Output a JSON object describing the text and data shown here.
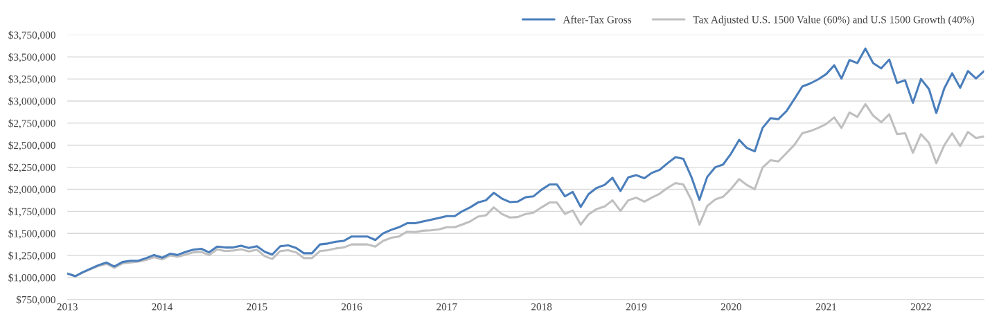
{
  "chart_data": {
    "type": "line",
    "x": [
      "2013-01",
      "2013-02",
      "2013-03",
      "2013-04",
      "2013-05",
      "2013-06",
      "2013-07",
      "2013-08",
      "2013-09",
      "2013-10",
      "2013-11",
      "2013-12",
      "2014-01",
      "2014-02",
      "2014-03",
      "2014-04",
      "2014-05",
      "2014-06",
      "2014-07",
      "2014-08",
      "2014-09",
      "2014-10",
      "2014-11",
      "2014-12",
      "2015-01",
      "2015-02",
      "2015-03",
      "2015-04",
      "2015-05",
      "2015-06",
      "2015-07",
      "2015-08",
      "2015-09",
      "2015-10",
      "2015-11",
      "2015-12",
      "2016-01",
      "2016-02",
      "2016-03",
      "2016-04",
      "2016-05",
      "2016-06",
      "2016-07",
      "2016-08",
      "2016-09",
      "2016-10",
      "2016-11",
      "2016-12",
      "2017-01",
      "2017-02",
      "2017-03",
      "2017-04",
      "2017-05",
      "2017-06",
      "2017-07",
      "2017-08",
      "2017-09",
      "2017-10",
      "2017-11",
      "2017-12",
      "2018-01",
      "2018-02",
      "2018-03",
      "2018-04",
      "2018-05",
      "2018-06",
      "2018-07",
      "2018-08",
      "2018-09",
      "2018-10",
      "2018-11",
      "2018-12",
      "2019-01",
      "2019-02",
      "2019-03",
      "2019-04",
      "2019-05",
      "2019-06",
      "2019-07",
      "2019-08",
      "2019-09",
      "2019-10",
      "2019-11",
      "2019-12",
      "2020-01",
      "2020-02",
      "2020-03",
      "2020-04",
      "2020-05",
      "2020-06",
      "2020-07",
      "2020-08",
      "2020-09",
      "2020-10",
      "2020-11",
      "2020-12",
      "2021-01",
      "2021-02",
      "2021-03",
      "2021-04",
      "2021-05",
      "2021-06",
      "2021-07",
      "2021-08",
      "2021-09",
      "2021-10",
      "2021-11",
      "2021-12",
      "2022-01",
      "2022-02",
      "2022-03",
      "2022-04",
      "2022-05",
      "2022-06",
      "2022-07",
      "2022-08",
      "2022-09"
    ],
    "series": [
      {
        "name": "After-Tax Gross",
        "color": "#4a7ebb",
        "values": [
          1045000,
          1015000,
          1060000,
          1100000,
          1140000,
          1170000,
          1125000,
          1175000,
          1190000,
          1190000,
          1220000,
          1255000,
          1225000,
          1270000,
          1255000,
          1290000,
          1315000,
          1325000,
          1285000,
          1350000,
          1340000,
          1340000,
          1360000,
          1335000,
          1355000,
          1290000,
          1260000,
          1355000,
          1365000,
          1335000,
          1275000,
          1275000,
          1375000,
          1385000,
          1405000,
          1415000,
          1465000,
          1465000,
          1465000,
          1425000,
          1500000,
          1540000,
          1570000,
          1615000,
          1615000,
          1635000,
          1655000,
          1675000,
          1695000,
          1695000,
          1750000,
          1795000,
          1850000,
          1875000,
          1960000,
          1895000,
          1855000,
          1860000,
          1910000,
          1920000,
          1995000,
          2055000,
          2055000,
          1920000,
          1970000,
          1800000,
          1945000,
          2015000,
          2050000,
          2130000,
          1980000,
          2135000,
          2160000,
          2125000,
          2185000,
          2220000,
          2295000,
          2365000,
          2345000,
          2140000,
          1880000,
          2140000,
          2250000,
          2280000,
          2405000,
          2560000,
          2470000,
          2430000,
          2695000,
          2805000,
          2795000,
          2885000,
          3025000,
          3165000,
          3200000,
          3245000,
          3305000,
          3405000,
          3255000,
          3465000,
          3430000,
          3595000,
          3430000,
          3370000,
          3470000,
          3205000,
          3235000,
          2980000,
          3250000,
          3135000,
          2865000,
          3145000,
          3315000,
          3150000,
          3340000,
          3255000,
          3340000
        ]
      },
      {
        "name": "Tax Adjusted U.S. 1500 Value (60%) and U.S 1500 Growth (40%)",
        "color": "#bfbfbf",
        "values": [
          1045000,
          1015000,
          1055000,
          1095000,
          1130000,
          1155000,
          1110000,
          1160000,
          1170000,
          1180000,
          1200000,
          1230000,
          1205000,
          1250000,
          1235000,
          1260000,
          1285000,
          1290000,
          1255000,
          1320000,
          1300000,
          1305000,
          1320000,
          1295000,
          1315000,
          1240000,
          1210000,
          1300000,
          1310000,
          1285000,
          1220000,
          1220000,
          1300000,
          1310000,
          1330000,
          1340000,
          1375000,
          1375000,
          1375000,
          1350000,
          1415000,
          1450000,
          1465000,
          1520000,
          1515000,
          1530000,
          1535000,
          1545000,
          1570000,
          1570000,
          1600000,
          1635000,
          1690000,
          1705000,
          1795000,
          1720000,
          1680000,
          1685000,
          1720000,
          1735000,
          1795000,
          1850000,
          1850000,
          1720000,
          1760000,
          1600000,
          1715000,
          1775000,
          1805000,
          1875000,
          1755000,
          1875000,
          1905000,
          1860000,
          1905000,
          1950000,
          2015000,
          2070000,
          2055000,
          1880000,
          1600000,
          1810000,
          1885000,
          1915000,
          2005000,
          2115000,
          2050000,
          2000000,
          2245000,
          2330000,
          2315000,
          2410000,
          2505000,
          2635000,
          2660000,
          2695000,
          2740000,
          2815000,
          2695000,
          2870000,
          2820000,
          2965000,
          2835000,
          2760000,
          2850000,
          2625000,
          2635000,
          2415000,
          2625000,
          2525000,
          2295000,
          2500000,
          2635000,
          2490000,
          2650000,
          2580000,
          2600000
        ]
      }
    ],
    "xlim": [
      "2013-01",
      "2022-09"
    ],
    "xticks": [
      {
        "value": "2013",
        "label": "2013"
      },
      {
        "value": "2014",
        "label": "2014"
      },
      {
        "value": "2015",
        "label": "2015"
      },
      {
        "value": "2016",
        "label": "2016"
      },
      {
        "value": "2017",
        "label": "2017"
      },
      {
        "value": "2018",
        "label": "2018"
      },
      {
        "value": "2019",
        "label": "2019"
      },
      {
        "value": "2020",
        "label": "2020"
      },
      {
        "value": "2021",
        "label": "2021"
      },
      {
        "value": "2022",
        "label": "2022"
      }
    ],
    "ylim": [
      750000,
      3750000
    ],
    "yticks": [
      {
        "value": 750000,
        "label": "$750,000"
      },
      {
        "value": 1000000,
        "label": "$1,000,000"
      },
      {
        "value": 1250000,
        "label": "$1,250,000"
      },
      {
        "value": 1500000,
        "label": "$1,500,000"
      },
      {
        "value": 1750000,
        "label": "$1,750,000"
      },
      {
        "value": 2000000,
        "label": "$2,000,000"
      },
      {
        "value": 2250000,
        "label": "$2,250,000"
      },
      {
        "value": 2500000,
        "label": "$2,500,000"
      },
      {
        "value": 2750000,
        "label": "$2,750,000"
      },
      {
        "value": 3000000,
        "label": "$3,000,000"
      },
      {
        "value": 3250000,
        "label": "$3,250,000"
      },
      {
        "value": 3500000,
        "label": "$3,500,000"
      },
      {
        "value": 3750000,
        "label": "$3,750,000"
      }
    ],
    "grid": "y",
    "legend": "top right"
  }
}
